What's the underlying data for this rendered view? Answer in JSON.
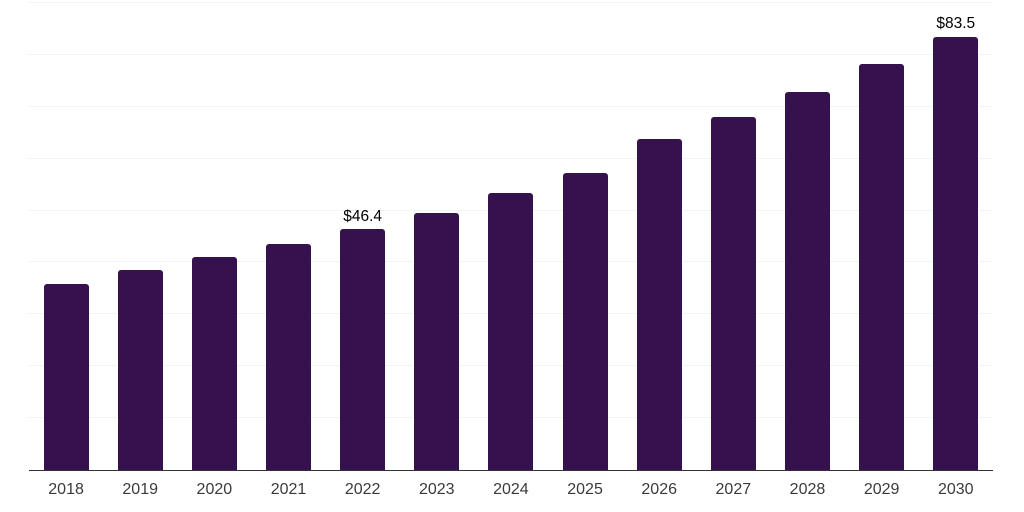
{
  "chart_data": {
    "type": "bar",
    "title": "",
    "xlabel": "",
    "ylabel": "",
    "categories": [
      "2018",
      "2019",
      "2020",
      "2021",
      "2022",
      "2023",
      "2024",
      "2025",
      "2026",
      "2027",
      "2028",
      "2029",
      "2030"
    ],
    "values": [
      35.8,
      38.5,
      41.1,
      43.5,
      46.4,
      49.6,
      53.3,
      57.2,
      63.7,
      68.1,
      72.9,
      78.2,
      83.5
    ],
    "data_labels": [
      "",
      "",
      "",
      "",
      "$46.4",
      "",
      "",
      "",
      "",
      "",
      "",
      "",
      "$83.5"
    ],
    "value_unit": "USD billions (implied by $ labels)",
    "ylim": [
      0,
      90
    ],
    "gridline_step": 10,
    "grid": true,
    "y_tick_labels_shown": false,
    "legend": "none",
    "colors": {
      "bar": "#35114d",
      "gridline": "#f3f3f3",
      "axis_line": "#333333",
      "x_tick_label": "#3a3a3a",
      "data_label": "#000000",
      "background": "#ffffff"
    }
  }
}
